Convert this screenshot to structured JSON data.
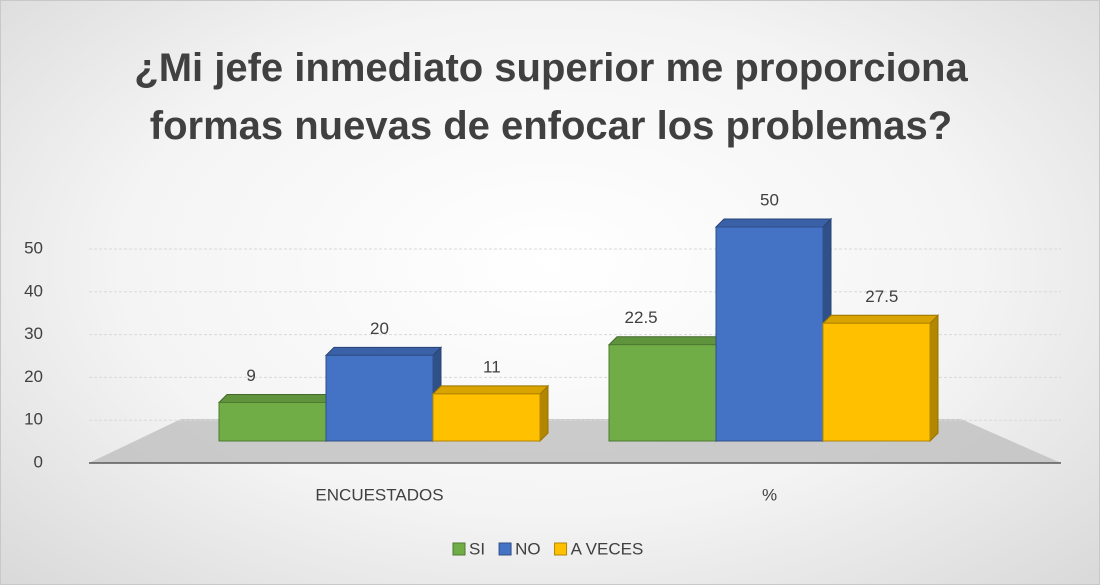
{
  "chart_data": {
    "type": "bar3d",
    "title": "¿Mi jefe inmediato superior me proporciona formas nuevas de enfocar los problemas?",
    "categories": [
      "ENCUESTADOS",
      "%"
    ],
    "series": [
      {
        "name": "SI",
        "color": "#70ad47",
        "values": [
          9,
          22.5
        ]
      },
      {
        "name": "NO",
        "color": "#4472c4",
        "values": [
          20,
          50
        ]
      },
      {
        "name": "A VECES",
        "color": "#ffc000",
        "values": [
          11,
          27.5
        ]
      }
    ],
    "ylim": [
      0,
      50
    ],
    "yticks": [
      0,
      10,
      20,
      30,
      40,
      50
    ],
    "grid": true,
    "legend": "bottom"
  }
}
